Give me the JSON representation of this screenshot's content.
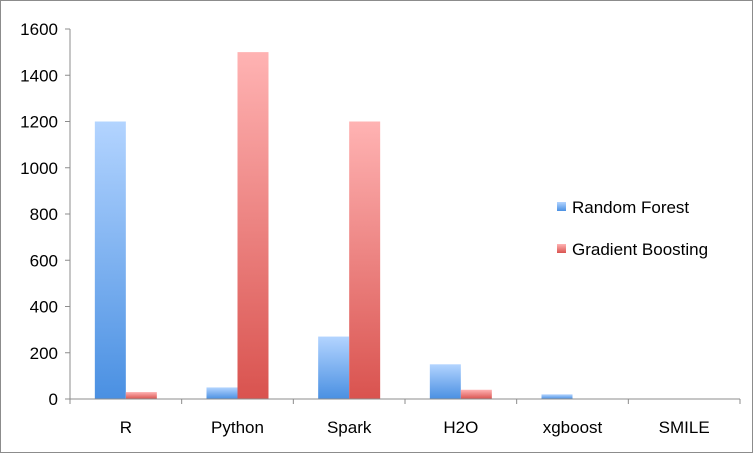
{
  "chart_data": {
    "type": "bar",
    "title": "",
    "xlabel": "",
    "ylabel": "",
    "categories": [
      "R",
      "Python",
      "Spark",
      "H2O",
      "xgboost",
      "SMILE"
    ],
    "ylim": [
      0,
      1600
    ],
    "yticks": [
      0,
      200,
      400,
      600,
      800,
      1000,
      1200,
      1400,
      1600
    ],
    "grid": false,
    "legend_position": "right",
    "series": [
      {
        "name": "Random Forest",
        "values": [
          1200,
          50,
          270,
          150,
          20,
          0
        ],
        "color": "#4a90e2",
        "color_light": "#b3d4ff"
      },
      {
        "name": "Gradient Boosting",
        "values": [
          30,
          1500,
          1200,
          40,
          0,
          0
        ],
        "color": "#d9534f",
        "color_light": "#ffb3b3"
      }
    ]
  }
}
